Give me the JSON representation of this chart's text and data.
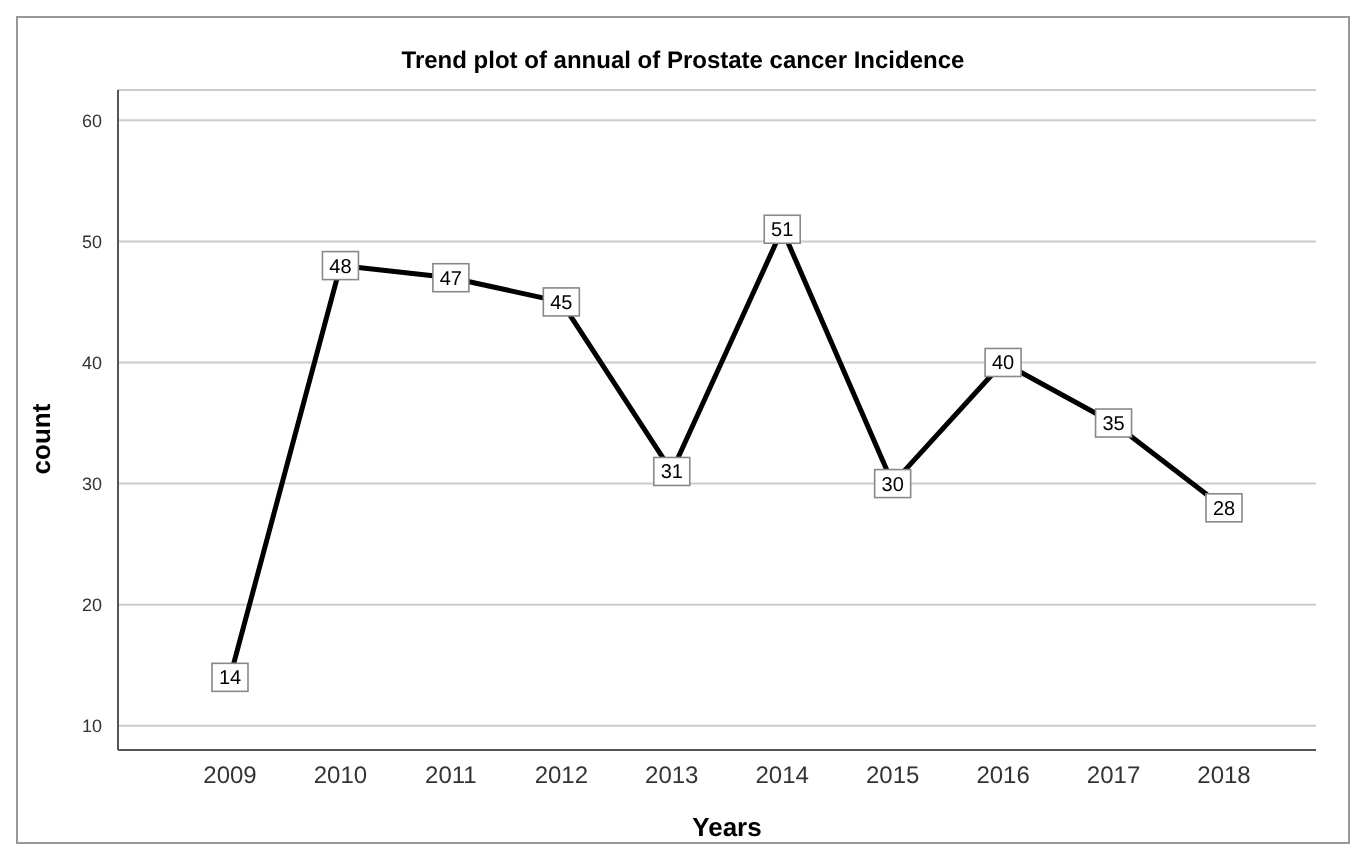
{
  "chart_data": {
    "type": "line",
    "title": "Trend plot of annual of Prostate cancer Incidence",
    "xlabel": "Years",
    "ylabel": "count",
    "categories": [
      "2009",
      "2010",
      "2011",
      "2012",
      "2013",
      "2014",
      "2015",
      "2016",
      "2017",
      "2018"
    ],
    "series": [
      {
        "color": "#000000",
        "values": [
          14,
          48,
          47,
          45,
          31,
          51,
          30,
          40,
          35,
          28
        ]
      }
    ],
    "ylim": [
      8,
      62.5
    ],
    "yticks": [
      10,
      20,
      30,
      40,
      50,
      60
    ],
    "grid": "y",
    "data_labels": true,
    "marker": "square",
    "line_style": "solid"
  }
}
